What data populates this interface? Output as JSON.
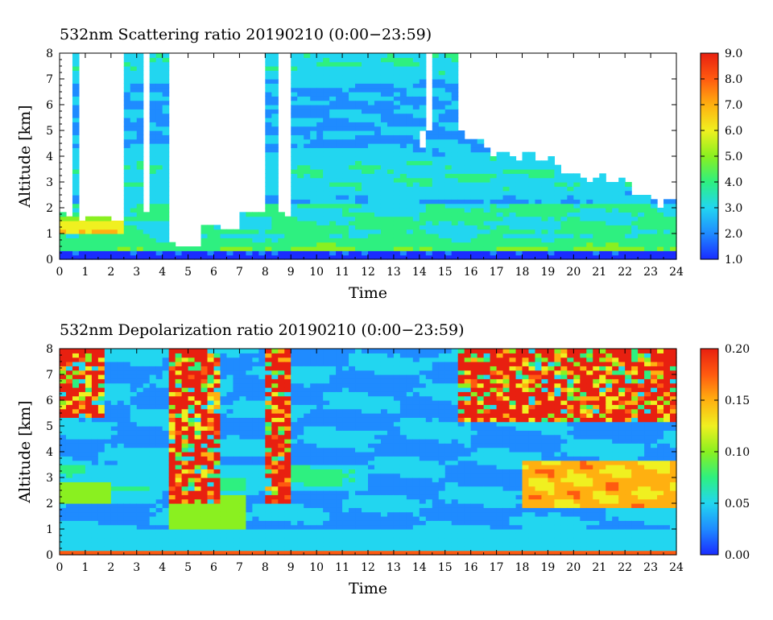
{
  "chart_data": [
    {
      "type": "heatmap",
      "title": "532nm Scattering ratio  20190210 (0:00−23:59)",
      "xlabel": "Time",
      "ylabel": "Altitude [km]",
      "xlim": [
        0,
        24
      ],
      "ylim": [
        0,
        8
      ],
      "x_ticks": [
        "0",
        "1",
        "2",
        "3",
        "4",
        "5",
        "6",
        "7",
        "8",
        "9",
        "10",
        "11",
        "12",
        "13",
        "14",
        "15",
        "16",
        "17",
        "18",
        "19",
        "20",
        "21",
        "22",
        "23",
        "24"
      ],
      "y_ticks": [
        "0",
        "1",
        "2",
        "3",
        "4",
        "5",
        "6",
        "7",
        "8"
      ],
      "colorbar": {
        "min": 1.0,
        "max": 9.0,
        "ticks": [
          "1.0",
          "2.0",
          "3.0",
          "4.0",
          "5.0",
          "6.0",
          "7.0",
          "8.0",
          "9.0"
        ],
        "colormap": [
          "#1a2cff",
          "#1f8bff",
          "#22d6f0",
          "#2ef080",
          "#8af020",
          "#f0f020",
          "#ffb010",
          "#ff5a10",
          "#e82010"
        ]
      },
      "features": {
        "opaque_cloud_regions_white": [
          {
            "t": [
              0.0,
              0.6
            ],
            "z_bottom": 1.75
          },
          {
            "t": [
              0.8,
              2.0
            ],
            "z_bottom": 1.6
          },
          {
            "t": [
              2.0,
              2.5
            ],
            "z_bottom": 1.4
          },
          {
            "t": [
              4.2,
              5.6
            ],
            "z_bottom": 0.6
          },
          {
            "t": [
              5.6,
              7.0
            ],
            "z_bottom": 1.3
          },
          {
            "t": [
              8.5,
              9.1
            ],
            "z_bottom": 1.8
          },
          {
            "t": [
              15.4,
              24.0
            ],
            "z_bottom_start": 4.8,
            "z_bottom_end": 2.2
          }
        ],
        "boundary_layer_top_km": 1.0,
        "surface_line_km": 0.2
      }
    },
    {
      "type": "heatmap",
      "title": "532nm Depolarization ratio  20190210 (0:00−23:59)",
      "xlabel": "Time",
      "ylabel": "Altitude [km]",
      "xlim": [
        0,
        24
      ],
      "ylim": [
        0,
        8
      ],
      "x_ticks": [
        "0",
        "1",
        "2",
        "3",
        "4",
        "5",
        "6",
        "7",
        "8",
        "9",
        "10",
        "11",
        "12",
        "13",
        "14",
        "15",
        "16",
        "17",
        "18",
        "19",
        "20",
        "21",
        "22",
        "23",
        "24"
      ],
      "y_ticks": [
        "0",
        "1",
        "2",
        "3",
        "4",
        "5",
        "6",
        "7",
        "8"
      ],
      "colorbar": {
        "min": 0.0,
        "max": 0.2,
        "ticks": [
          "0.00",
          "0.05",
          "0.10",
          "0.15",
          "0.20"
        ],
        "colormap": [
          "#1a2cff",
          "#1f8bff",
          "#22d6f0",
          "#2ef080",
          "#8af020",
          "#f0f020",
          "#ffb010",
          "#ff5a10",
          "#e82010"
        ]
      },
      "features": {
        "noisy_high_depol_regions": [
          {
            "t": [
              0.0,
              1.8
            ],
            "z": [
              5.5,
              8.0
            ]
          },
          {
            "t": [
              4.2,
              6.2
            ],
            "z": [
              2.0,
              8.0
            ]
          },
          {
            "t": [
              8.1,
              9.0
            ],
            "z": [
              2.0,
              8.0
            ]
          },
          {
            "t": [
              15.4,
              24.0
            ],
            "z": [
              5.2,
              8.0
            ]
          }
        ],
        "high_depol_layer": {
          "t": [
            18.0,
            24.0
          ],
          "z": [
            1.8,
            3.6
          ],
          "value": 0.17
        }
      }
    }
  ]
}
